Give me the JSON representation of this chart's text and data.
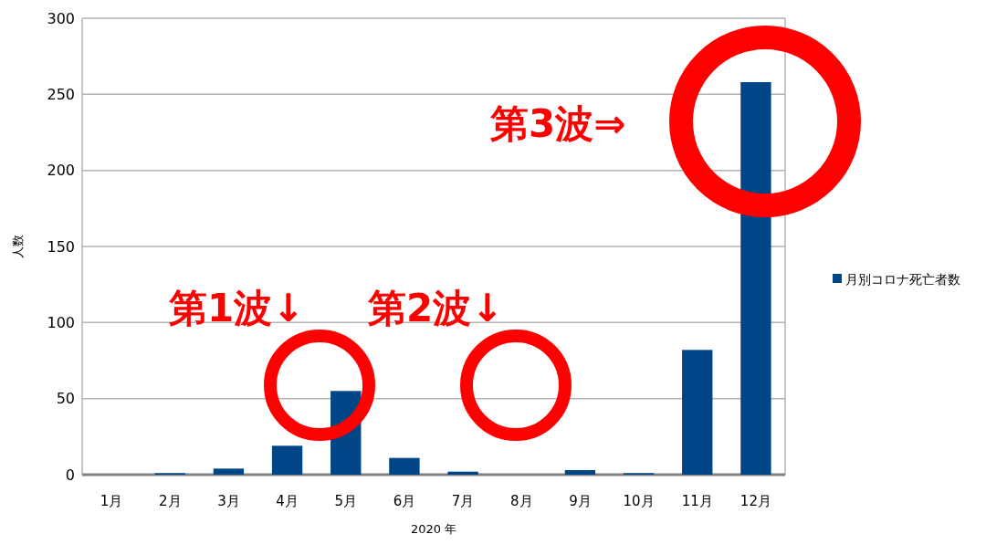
{
  "chart_data": {
    "type": "bar",
    "xlabel": "2020 年",
    "ylabel": "人数",
    "categories": [
      "1月",
      "2月",
      "3月",
      "4月",
      "5月",
      "6月",
      "7月",
      "8月",
      "9月",
      "10月",
      "11月",
      "12月"
    ],
    "series": [
      {
        "name": "月別コロナ死亡者数",
        "color": "#004586",
        "values": [
          0,
          1,
          4,
          19,
          55,
          11,
          2,
          0,
          3,
          1,
          82,
          258
        ]
      }
    ],
    "ylim": [
      0,
      300
    ],
    "yticks": [
      0,
      50,
      100,
      150,
      200,
      250,
      300
    ],
    "grid": "y",
    "legend": "right",
    "annotations": [
      "第1波↓",
      "第2波↓",
      "第3波⇒"
    ]
  }
}
